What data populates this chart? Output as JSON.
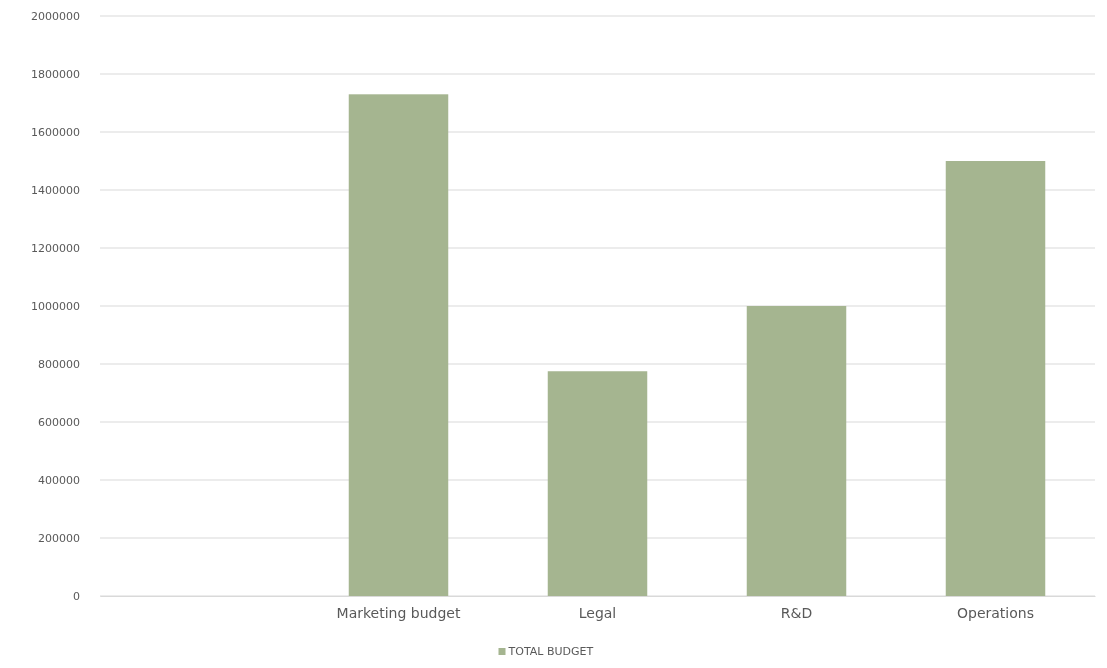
{
  "chart_data": {
    "type": "bar",
    "categories": [
      null,
      "Marketing budget",
      "Legal",
      "R&D",
      "Operations"
    ],
    "series": [
      {
        "name": "TOTAL BUDGET",
        "color": "#a5b590",
        "values": [
          null,
          1730000,
          775000,
          1000000,
          1500000
        ]
      }
    ],
    "ylim": [
      0,
      2000000
    ],
    "yticks": [
      0,
      200000,
      400000,
      600000,
      800000,
      1000000,
      1200000,
      1400000,
      1600000,
      1800000,
      2000000
    ],
    "grid": "y",
    "legend": "bottom"
  }
}
